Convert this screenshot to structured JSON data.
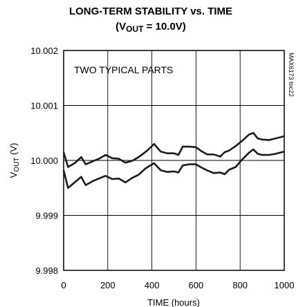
{
  "chart_data": {
    "type": "line",
    "title": "LONG-TERM STABILITY vs. TIME",
    "subtitle": {
      "prefix": "(V",
      "sub": "OUT",
      "suffix": " = 10.0V)"
    },
    "xlabel": "TIME (hours)",
    "ylabel": {
      "prefix": "V",
      "sub": "OUT",
      "suffix": " (V)"
    },
    "xlim": [
      0,
      1000
    ],
    "ylim": [
      9.998,
      10.002
    ],
    "xticks": [
      0,
      200,
      400,
      600,
      800,
      1000
    ],
    "yticks": [
      "9.998",
      "9.999",
      "10.000",
      "10.001",
      "10.002"
    ],
    "grid": true,
    "annotation": "TWO TYPICAL PARTS",
    "side_code": "MAX6173 toc22",
    "line_color": "#1a1a1a",
    "series": [
      {
        "x": [
          0,
          20,
          50,
          80,
          100,
          130,
          160,
          190,
          220,
          250,
          280,
          310,
          340,
          370,
          390,
          410,
          440,
          470,
          500,
          520,
          540,
          570,
          600,
          620,
          650,
          680,
          710,
          730,
          750,
          780,
          810,
          840,
          860,
          880,
          900,
          930,
          960,
          980,
          1000
        ],
        "y": [
          10.00015,
          9.99988,
          9.99995,
          10.00006,
          9.99993,
          9.99998,
          10.00003,
          10.0001,
          10.00004,
          10.00003,
          9.99996,
          9.99999,
          10.00006,
          10.00015,
          10.00022,
          10.0003,
          10.00016,
          10.00013,
          10.00013,
          10.0001,
          10.00025,
          10.00025,
          10.00024,
          10.00018,
          10.00011,
          10.00011,
          10.00007,
          10.00015,
          10.00018,
          10.00026,
          10.00036,
          10.00047,
          10.0005,
          10.0004,
          10.00038,
          10.00037,
          10.0004,
          10.00042,
          10.00044
        ]
      },
      {
        "x": [
          0,
          20,
          50,
          80,
          100,
          130,
          160,
          190,
          220,
          250,
          280,
          310,
          340,
          370,
          390,
          410,
          440,
          470,
          500,
          520,
          540,
          570,
          600,
          620,
          650,
          680,
          710,
          730,
          750,
          780,
          810,
          840,
          860,
          880,
          900,
          930,
          960,
          980,
          1000
        ],
        "y": [
          9.99982,
          9.9995,
          9.9996,
          9.9997,
          9.99955,
          9.99962,
          9.99967,
          9.99972,
          9.99966,
          9.99967,
          9.9996,
          9.99968,
          9.99974,
          9.99985,
          9.9999,
          9.99995,
          9.99982,
          9.99979,
          9.9998,
          9.99978,
          9.99991,
          9.99993,
          9.99993,
          9.99988,
          9.99982,
          9.99977,
          9.99978,
          9.99975,
          9.99983,
          9.99988,
          10.00002,
          10.00014,
          10.0002,
          10.00012,
          10.0001,
          10.0001,
          10.00012,
          10.00014,
          10.00016
        ]
      }
    ]
  }
}
